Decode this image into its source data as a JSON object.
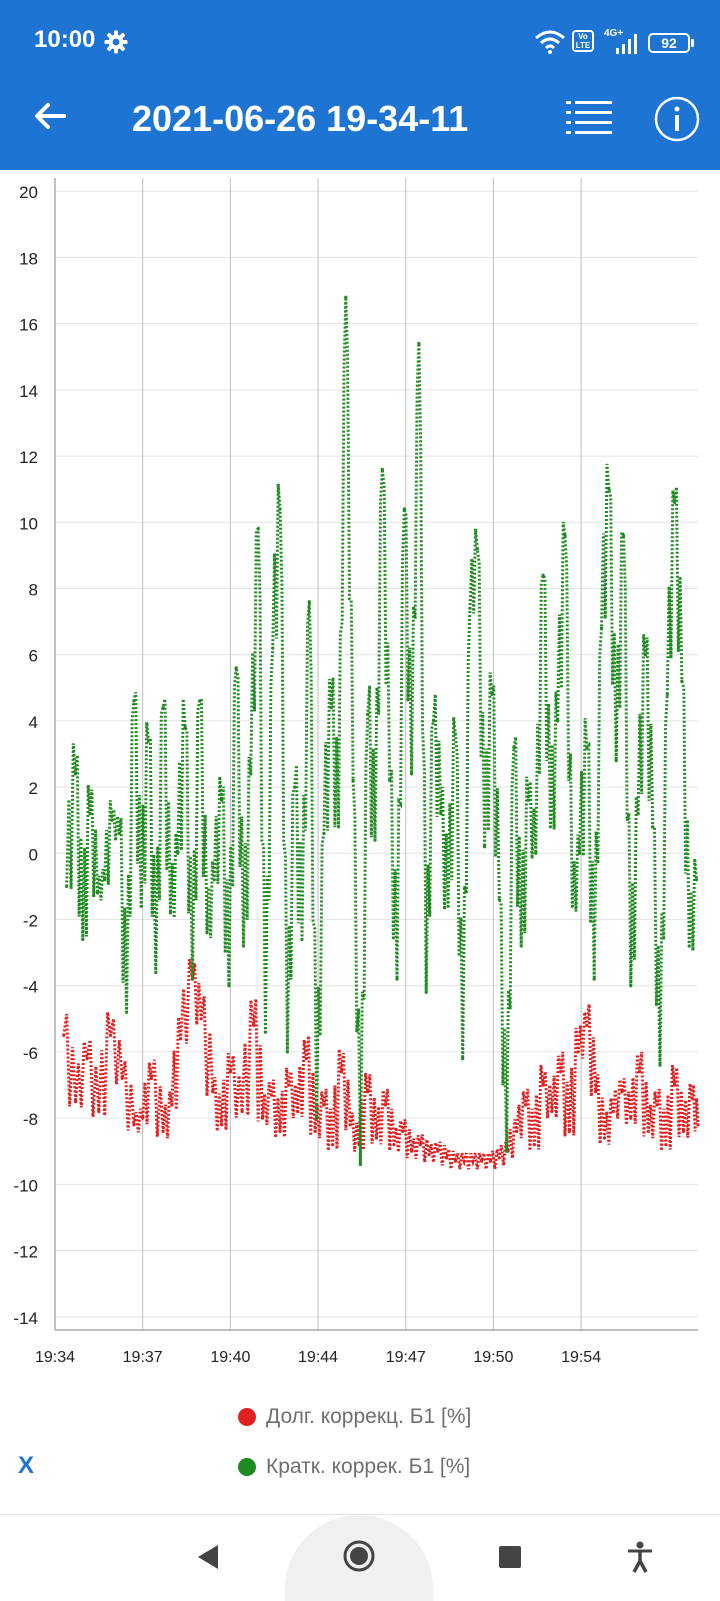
{
  "status_bar": {
    "time": "10:00",
    "network_label": "4G+",
    "volte_label": "Vo LTE",
    "battery": "92",
    "icons": [
      "gear-icon",
      "wifi-icon",
      "volte-icon",
      "signal-icon",
      "battery-icon"
    ]
  },
  "app_bar": {
    "title": "2021-06-26 19-34-11",
    "icons": [
      "back-arrow-icon",
      "list-icon",
      "info-icon"
    ]
  },
  "chart_data": {
    "type": "line",
    "title": "",
    "xlabel": "",
    "ylabel": "",
    "x_range_minutes": [
      0,
      22
    ],
    "ylim": [
      -14.4,
      20.4
    ],
    "y_ticks": [
      20,
      18,
      16,
      14,
      12,
      10,
      8,
      6,
      4,
      2,
      0,
      -2,
      -4,
      -6,
      -8,
      -10,
      -12,
      -14
    ],
    "x_ticks": [
      {
        "min": 0,
        "label": "19:34"
      },
      {
        "min": 3,
        "label": "19:37"
      },
      {
        "min": 6,
        "label": "19:40"
      },
      {
        "min": 9,
        "label": "19:44"
      },
      {
        "min": 12,
        "label": "19:47"
      },
      {
        "min": 15,
        "label": "19:50"
      },
      {
        "min": 18,
        "label": "19:54"
      }
    ],
    "grid": true,
    "legend_position": "bottom",
    "series": [
      {
        "name": "Долг. коррекц. Б1 [%]",
        "color": "#e02020",
        "style": "dotted",
        "x": [
          0.3,
          0.7,
          1.1,
          1.5,
          1.9,
          2.3,
          2.7,
          3.0,
          3.3,
          3.7,
          4.0,
          4.3,
          4.7,
          5.0,
          5.4,
          5.7,
          6.0,
          6.4,
          6.8,
          7.1,
          7.4,
          7.7,
          8.0,
          8.3,
          8.6,
          8.9,
          9.2,
          9.5,
          9.8,
          10.1,
          10.4,
          10.7,
          11.0,
          11.3,
          11.6,
          11.9,
          12.2,
          12.5,
          12.8,
          13.1,
          13.4,
          13.7,
          14.0,
          14.3,
          14.6,
          14.9,
          15.2,
          15.5,
          15.8,
          16.1,
          16.4,
          16.7,
          17.0,
          17.3,
          17.6,
          17.9,
          18.2,
          18.5,
          18.8,
          19.1,
          19.4,
          19.7,
          20.0,
          20.3,
          20.6,
          20.9,
          21.2,
          21.5,
          21.8,
          22.0
        ],
        "values": [
          -5.5,
          -7.5,
          -6.2,
          -7.8,
          -5.5,
          -6.8,
          -8.2,
          -8.0,
          -6.8,
          -8.4,
          -7.6,
          -5.6,
          -3.8,
          -5.0,
          -7.2,
          -8.2,
          -6.6,
          -7.8,
          -5.2,
          -8.0,
          -7.3,
          -8.4,
          -7.0,
          -7.8,
          -6.2,
          -8.4,
          -7.6,
          -8.8,
          -6.6,
          -8.2,
          -8.8,
          -7.2,
          -8.6,
          -7.6,
          -8.8,
          -8.4,
          -9.0,
          -8.8,
          -9.1,
          -9.0,
          -9.2,
          -9.3,
          -9.3,
          -9.3,
          -9.3,
          -9.3,
          -9.2,
          -9.0,
          -8.4,
          -7.6,
          -8.8,
          -7.0,
          -7.8,
          -6.6,
          -8.4,
          -6.0,
          -5.2,
          -7.2,
          -8.6,
          -7.8,
          -7.2,
          -8.0,
          -6.6,
          -8.4,
          -7.6,
          -8.8,
          -7.0,
          -8.4,
          -7.4,
          -8.2
        ]
      },
      {
        "name": "Кратк. коррек. Б1 [%]",
        "color": "#1f8a1f",
        "style": "dotted",
        "x": [
          0.4,
          0.7,
          0.95,
          1.2,
          1.45,
          1.7,
          1.95,
          2.2,
          2.45,
          2.7,
          2.95,
          3.2,
          3.45,
          3.7,
          3.95,
          4.2,
          4.45,
          4.7,
          4.95,
          5.2,
          5.45,
          5.7,
          5.95,
          6.2,
          6.45,
          6.7,
          6.95,
          7.2,
          7.45,
          7.7,
          7.95,
          8.2,
          8.45,
          8.7,
          8.95,
          9.2,
          9.45,
          9.7,
          9.95,
          10.2,
          10.45,
          10.7,
          10.95,
          11.2,
          11.45,
          11.7,
          11.95,
          12.2,
          12.45,
          12.7,
          12.95,
          13.2,
          13.45,
          13.7,
          13.95,
          14.2,
          14.45,
          14.7,
          14.95,
          15.2,
          15.45,
          15.7,
          15.95,
          16.2,
          16.45,
          16.7,
          16.95,
          17.2,
          17.45,
          17.7,
          17.95,
          18.2,
          18.45,
          18.7,
          18.95,
          19.2,
          19.45,
          19.7,
          19.95,
          20.2,
          20.45,
          20.7,
          20.95,
          21.2,
          21.45,
          21.7,
          21.95
        ],
        "values": [
          -1.0,
          2.4,
          -2.6,
          1.2,
          -1.2,
          -0.8,
          1.0,
          0.6,
          -4.8,
          4.6,
          -1.6,
          3.4,
          -3.6,
          4.4,
          -1.8,
          0.0,
          3.8,
          -3.8,
          4.6,
          -2.4,
          -0.8,
          1.6,
          -4.0,
          5.6,
          -2.8,
          2.4,
          9.8,
          -5.4,
          6.2,
          10.4,
          -6.0,
          2.0,
          -2.6,
          7.6,
          -8.0,
          0.6,
          4.4,
          0.8,
          16.8,
          2.2,
          -9.4,
          4.2,
          0.4,
          11.6,
          2.2,
          -3.8,
          10.4,
          2.4,
          15.4,
          -4.2,
          4.0,
          1.2,
          -1.6,
          3.6,
          -6.2,
          7.4,
          9.2,
          0.2,
          4.8,
          -1.4,
          -9.0,
          3.2,
          -2.8,
          1.6,
          0.0,
          8.4,
          0.8,
          4.0,
          9.6,
          -1.6,
          0.0,
          3.2,
          -3.8,
          6.8,
          11.0,
          2.8,
          9.6,
          -4.0,
          1.2,
          6.0,
          0.8,
          -6.4,
          4.8,
          10.6,
          5.2,
          -2.8,
          -0.8
        ]
      }
    ]
  },
  "legend": {
    "entries": [
      "Долг. коррекц. Б1 [%]",
      "Кратк. коррек. Б1 [%]"
    ]
  },
  "controls": {
    "x_button": "X"
  },
  "nav_bar": {
    "icons": [
      "back-triangle-icon",
      "home-circle-icon",
      "recents-square-icon",
      "accessibility-icon"
    ]
  }
}
